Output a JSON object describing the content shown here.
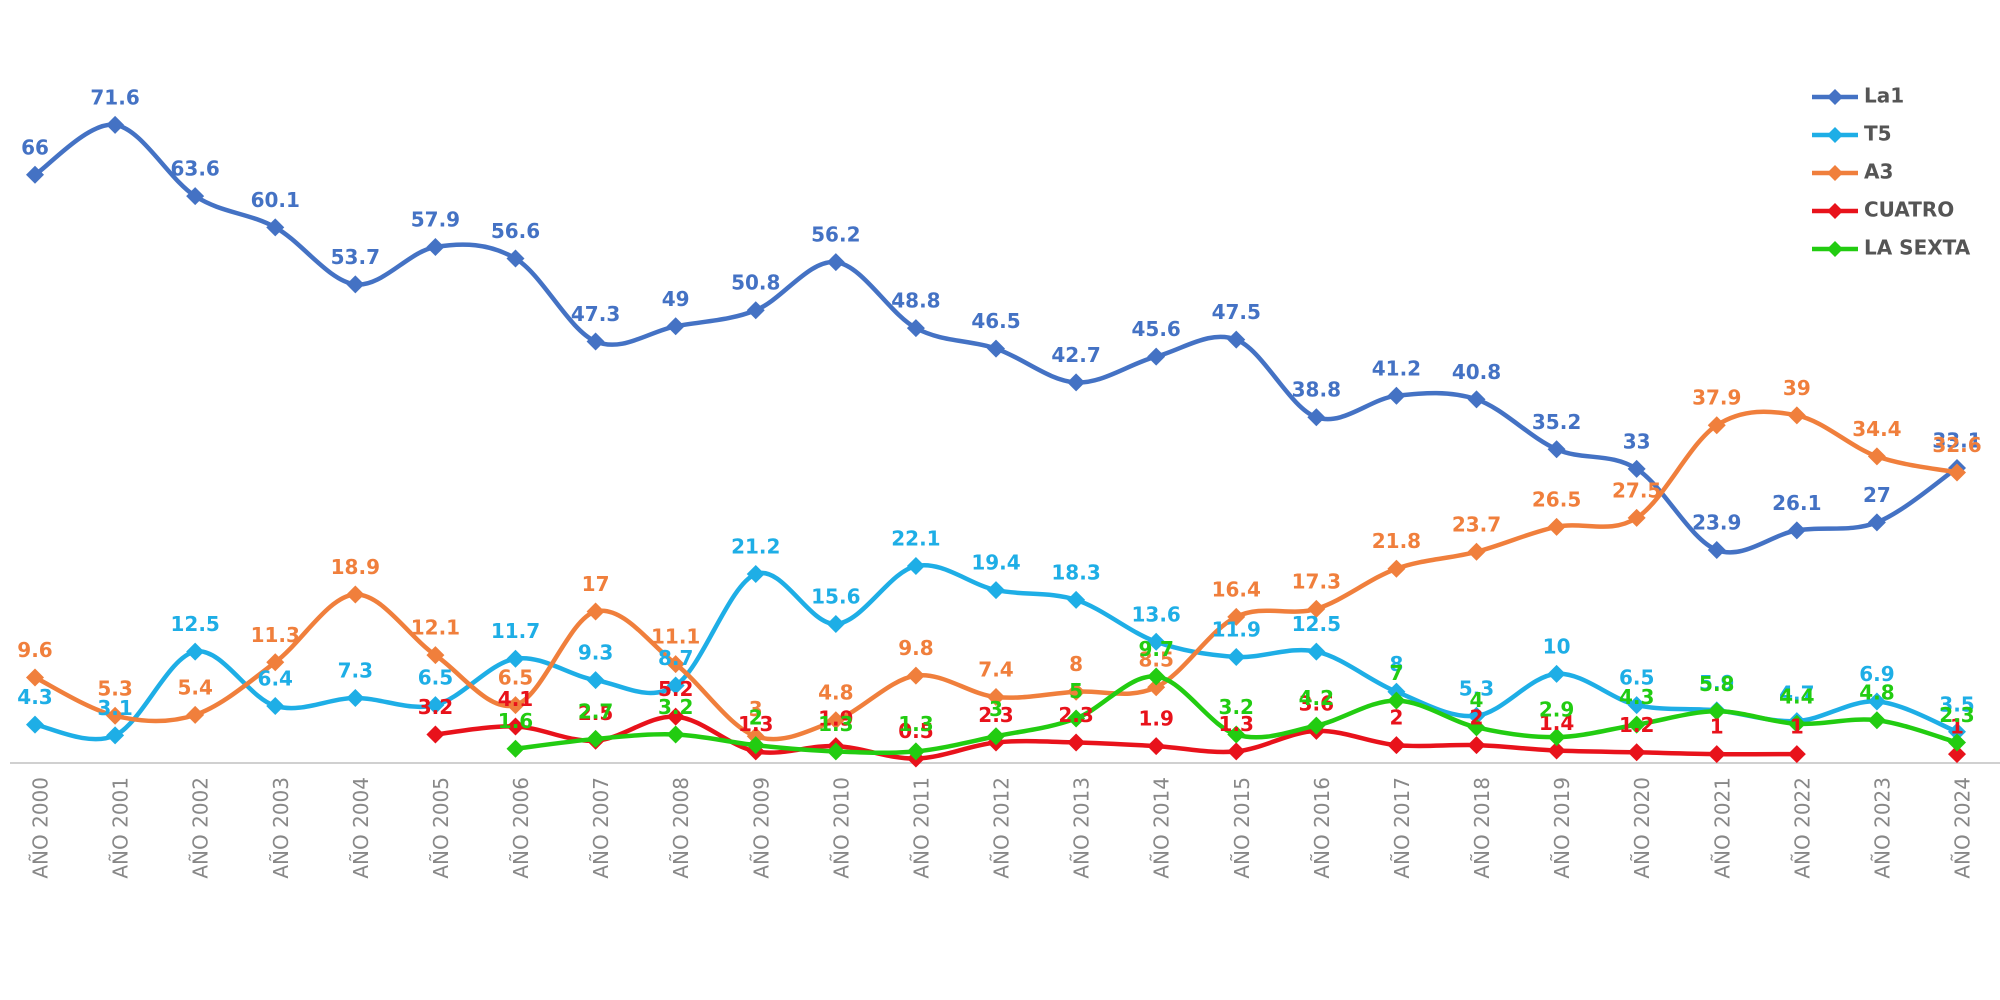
{
  "chart_data": {
    "type": "line",
    "categories": [
      "AÑO 2000",
      "AÑO 2001",
      "AÑO 2002",
      "AÑO 2003",
      "AÑO 2004",
      "AÑO 2005",
      "AÑO 2006",
      "AÑO 2007",
      "AÑO 2008",
      "AÑO 2009",
      "AÑO 2010",
      "AÑO 2011",
      "AÑO 2012",
      "AÑO 2013",
      "AÑO 2014",
      "AÑO 2015",
      "AÑO 2016",
      "AÑO 2017",
      "AÑO 2018",
      "AÑO 2019",
      "AÑO 2020",
      "AÑO 2021",
      "AÑO 2022",
      "AÑO 2023",
      "AÑO 2024"
    ],
    "ylim": [
      0,
      80
    ],
    "legend": "top-right",
    "series": [
      {
        "name": "La1",
        "color": "#4472c4",
        "values": [
          66,
          71.6,
          63.6,
          60.1,
          53.7,
          57.9,
          56.6,
          47.3,
          49,
          50.8,
          56.2,
          48.8,
          46.5,
          42.7,
          45.6,
          47.5,
          38.8,
          41.2,
          40.8,
          35.2,
          33,
          23.9,
          26.1,
          27,
          33.1
        ]
      },
      {
        "name": "T5",
        "color": "#1eaee6",
        "values": [
          4.3,
          3.1,
          12.5,
          6.4,
          7.3,
          6.5,
          11.7,
          9.3,
          8.7,
          21.2,
          15.6,
          22.1,
          19.4,
          18.3,
          13.6,
          11.9,
          12.5,
          8,
          5.3,
          10,
          6.5,
          5.9,
          4.7,
          6.9,
          3.5
        ]
      },
      {
        "name": "A3",
        "color": "#f07f3c",
        "values": [
          9.6,
          5.3,
          5.4,
          11.3,
          18.9,
          12.1,
          6.5,
          17,
          11.1,
          3,
          4.8,
          9.8,
          7.4,
          8,
          8.5,
          16.4,
          17.3,
          21.8,
          23.7,
          26.5,
          27.5,
          37.9,
          39,
          34.4,
          32.6
        ]
      },
      {
        "name": "CUATRO",
        "color": "#e8121b",
        "values": [
          null,
          null,
          null,
          null,
          null,
          3.2,
          4.1,
          2.5,
          5.2,
          1.3,
          1.9,
          0.5,
          2.3,
          2.3,
          1.9,
          1.3,
          3.6,
          2,
          2,
          1.4,
          1.2,
          1,
          1,
          null,
          1
        ]
      },
      {
        "name": "LA SEXTA",
        "color": "#22cc11",
        "values": [
          null,
          null,
          null,
          null,
          null,
          null,
          1.6,
          2.7,
          3.2,
          2,
          1.3,
          1.3,
          3,
          5,
          9.7,
          3.2,
          4.2,
          7,
          4,
          2.9,
          4.3,
          5.8,
          4.4,
          4.8,
          2.3
        ]
      }
    ]
  }
}
